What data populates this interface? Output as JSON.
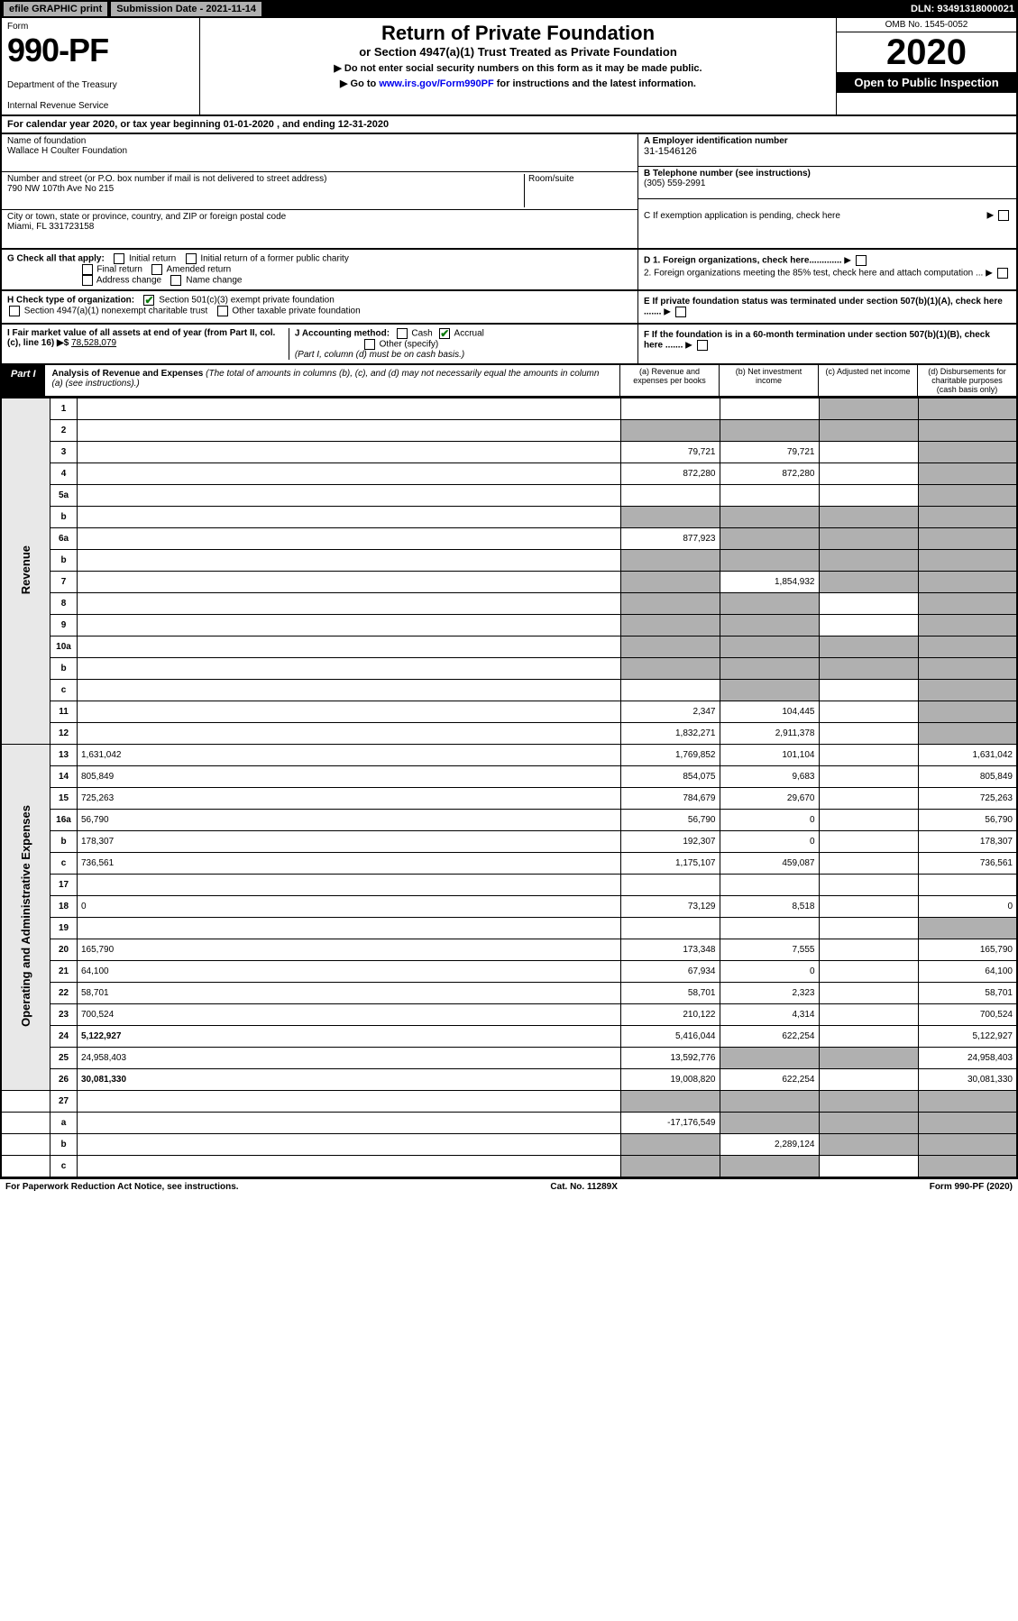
{
  "topbar": {
    "efile": "efile GRAPHIC print",
    "submission": "Submission Date - 2021-11-14",
    "dln": "DLN: 93491318000021"
  },
  "header": {
    "form_label": "Form",
    "form_number": "990-PF",
    "dept1": "Department of the Treasury",
    "dept2": "Internal Revenue Service",
    "title": "Return of Private Foundation",
    "subtitle": "or Section 4947(a)(1) Trust Treated as Private Foundation",
    "instr1": "▶ Do not enter social security numbers on this form as it may be made public.",
    "instr2_pre": "▶ Go to ",
    "instr2_link": "www.irs.gov/Form990PF",
    "instr2_post": " for instructions and the latest information.",
    "omb": "OMB No. 1545-0052",
    "year": "2020",
    "open": "Open to Public Inspection"
  },
  "cal_year": "For calendar year 2020, or tax year beginning 01-01-2020             , and ending 12-31-2020",
  "info": {
    "name_label": "Name of foundation",
    "name": "Wallace H Coulter Foundation",
    "addr_label": "Number and street (or P.O. box number if mail is not delivered to street address)",
    "addr": "790 NW 107th Ave No 215",
    "room_label": "Room/suite",
    "city_label": "City or town, state or province, country, and ZIP or foreign postal code",
    "city": "Miami, FL 331723158",
    "ein_label": "A Employer identification number",
    "ein": "31-1546126",
    "tel_label": "B Telephone number (see instructions)",
    "tel": "(305) 559-2991",
    "c_label": "C If exemption application is pending, check here"
  },
  "checks": {
    "g_label": "G Check all that apply:",
    "g1": "Initial return",
    "g2": "Initial return of a former public charity",
    "g3": "Final return",
    "g4": "Amended return",
    "g5": "Address change",
    "g6": "Name change",
    "h_label": "H Check type of organization:",
    "h1": "Section 501(c)(3) exempt private foundation",
    "h2": "Section 4947(a)(1) nonexempt charitable trust",
    "h3": "Other taxable private foundation",
    "i_label": "I Fair market value of all assets at end of year (from Part II, col. (c), line 16) ▶$ ",
    "i_val": "78,528,079",
    "j_label": "J Accounting method:",
    "j1": "Cash",
    "j2": "Accrual",
    "j3": "Other (specify)",
    "j_note": "(Part I, column (d) must be on cash basis.)",
    "d1": "D 1. Foreign organizations, check here.............",
    "d2": "2. Foreign organizations meeting the 85% test, check here and attach computation ...",
    "e": "E If private foundation status was terminated under section 507(b)(1)(A), check here .......",
    "f": "F If the foundation is in a 60-month termination under section 507(b)(1)(B), check here ......."
  },
  "part1": {
    "label": "Part I",
    "title": "Analysis of Revenue and Expenses",
    "note": "(The total of amounts in columns (b), (c), and (d) may not necessarily equal the amounts in column (a) (see instructions).)",
    "col_a": "(a) Revenue and expenses per books",
    "col_b": "(b) Net investment income",
    "col_c": "(c) Adjusted net income",
    "col_d": "(d) Disbursements for charitable purposes (cash basis only)"
  },
  "sections": {
    "revenue": "Revenue",
    "opex": "Operating and Administrative Expenses"
  },
  "rows": [
    {
      "n": "1",
      "d": "",
      "a": "",
      "b": "",
      "c": "",
      "shade_cd": true
    },
    {
      "n": "2",
      "d": "",
      "a": "",
      "b": "",
      "c": "",
      "shade_all": true
    },
    {
      "n": "3",
      "d": "",
      "a": "79,721",
      "b": "79,721",
      "c": "",
      "shade_d": true
    },
    {
      "n": "4",
      "d": "",
      "a": "872,280",
      "b": "872,280",
      "c": "",
      "shade_d": true
    },
    {
      "n": "5a",
      "d": "",
      "a": "",
      "b": "",
      "c": "",
      "shade_d": true
    },
    {
      "n": "b",
      "d": "",
      "a": "",
      "b": "",
      "c": "",
      "shade_all": true
    },
    {
      "n": "6a",
      "d": "",
      "a": "877,923",
      "b": "",
      "c": "",
      "shade_bcd": true
    },
    {
      "n": "b",
      "d": "",
      "a": "",
      "b": "",
      "c": "",
      "shade_all": true
    },
    {
      "n": "7",
      "d": "",
      "a": "",
      "b": "1,854,932",
      "c": "",
      "shade_acd": true
    },
    {
      "n": "8",
      "d": "",
      "a": "",
      "b": "",
      "c": "",
      "shade_abd": true
    },
    {
      "n": "9",
      "d": "",
      "a": "",
      "b": "",
      "c": "",
      "shade_abd": true
    },
    {
      "n": "10a",
      "d": "",
      "a": "",
      "b": "",
      "c": "",
      "shade_all": true
    },
    {
      "n": "b",
      "d": "",
      "a": "",
      "b": "",
      "c": "",
      "shade_all": true
    },
    {
      "n": "c",
      "d": "",
      "a": "",
      "b": "",
      "c": "",
      "shade_bd": true
    },
    {
      "n": "11",
      "d": "",
      "a": "2,347",
      "b": "104,445",
      "c": "",
      "shade_d": true
    },
    {
      "n": "12",
      "d": "",
      "a": "1,832,271",
      "b": "2,911,378",
      "c": "",
      "bold": true,
      "shade_d": true
    }
  ],
  "rows2": [
    {
      "n": "13",
      "d": "1,631,042",
      "a": "1,769,852",
      "b": "101,104",
      "c": ""
    },
    {
      "n": "14",
      "d": "805,849",
      "a": "854,075",
      "b": "9,683",
      "c": ""
    },
    {
      "n": "15",
      "d": "725,263",
      "a": "784,679",
      "b": "29,670",
      "c": ""
    },
    {
      "n": "16a",
      "d": "56,790",
      "a": "56,790",
      "b": "0",
      "c": ""
    },
    {
      "n": "b",
      "d": "178,307",
      "a": "192,307",
      "b": "0",
      "c": ""
    },
    {
      "n": "c",
      "d": "736,561",
      "a": "1,175,107",
      "b": "459,087",
      "c": ""
    },
    {
      "n": "17",
      "d": "",
      "a": "",
      "b": "",
      "c": ""
    },
    {
      "n": "18",
      "d": "0",
      "a": "73,129",
      "b": "8,518",
      "c": ""
    },
    {
      "n": "19",
      "d": "",
      "a": "",
      "b": "",
      "c": "",
      "shade_d": true
    },
    {
      "n": "20",
      "d": "165,790",
      "a": "173,348",
      "b": "7,555",
      "c": ""
    },
    {
      "n": "21",
      "d": "64,100",
      "a": "67,934",
      "b": "0",
      "c": ""
    },
    {
      "n": "22",
      "d": "58,701",
      "a": "58,701",
      "b": "2,323",
      "c": ""
    },
    {
      "n": "23",
      "d": "700,524",
      "a": "210,122",
      "b": "4,314",
      "c": ""
    },
    {
      "n": "24",
      "d": "5,122,927",
      "a": "5,416,044",
      "b": "622,254",
      "c": "",
      "bold": true
    },
    {
      "n": "25",
      "d": "24,958,403",
      "a": "13,592,776",
      "b": "",
      "c": "",
      "shade_bc": true
    },
    {
      "n": "26",
      "d": "30,081,330",
      "a": "19,008,820",
      "b": "622,254",
      "c": "",
      "bold": true
    }
  ],
  "rows3": [
    {
      "n": "27",
      "d": "",
      "a": "",
      "b": "",
      "c": "",
      "shade_all": true
    },
    {
      "n": "a",
      "d": "",
      "a": "-17,176,549",
      "b": "",
      "c": "",
      "bold": true,
      "shade_bcd": true
    },
    {
      "n": "b",
      "d": "",
      "a": "",
      "b": "2,289,124",
      "c": "",
      "bold": true,
      "shade_acd": true
    },
    {
      "n": "c",
      "d": "",
      "a": "",
      "b": "",
      "c": "",
      "bold": true,
      "shade_abd": true
    }
  ],
  "footer": {
    "left": "For Paperwork Reduction Act Notice, see instructions.",
    "mid": "Cat. No. 11289X",
    "right": "Form 990-PF (2020)"
  }
}
